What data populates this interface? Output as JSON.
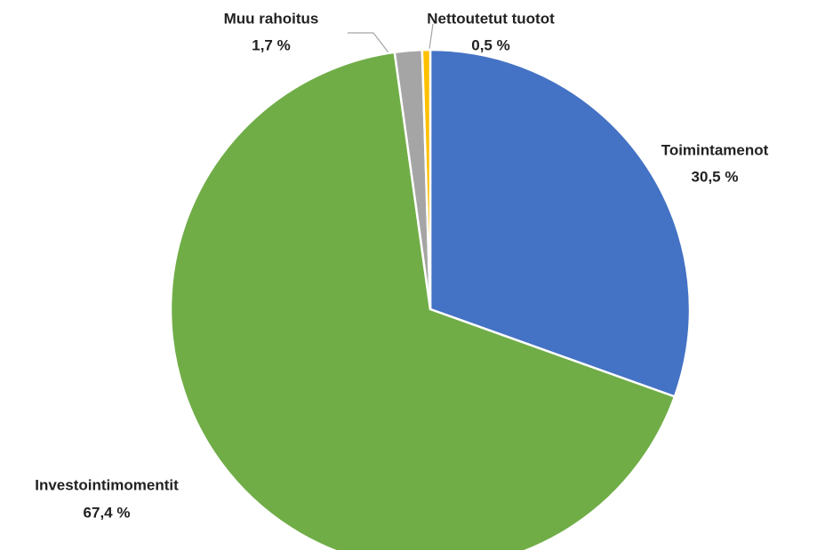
{
  "chart_data": {
    "type": "pie",
    "categories": [
      "Toimintamenot",
      "Investointimomentit",
      "Muu rahoitus",
      "Nettoutetut tuotot"
    ],
    "values": [
      30.5,
      67.4,
      1.7,
      0.5
    ],
    "value_labels": [
      "30,5 %",
      "67,4 %",
      "1,7 %",
      "0,5 %"
    ],
    "colors": [
      "#4472c4",
      "#70ad47",
      "#a5a5a5",
      "#ffc000"
    ]
  }
}
